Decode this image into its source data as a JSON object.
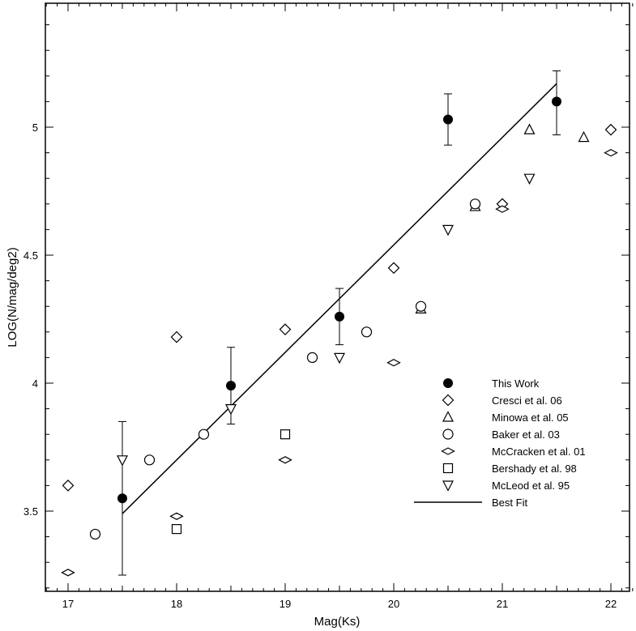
{
  "chart_data": {
    "type": "scatter",
    "xlabel": "Mag(Ks)",
    "ylabel": "LOG(N/mag/deg2)",
    "xlim": [
      16.8,
      22.3
    ],
    "ylim": [
      3.2,
      5.48
    ],
    "x_ticks": [
      "17",
      "18",
      "19",
      "20",
      "21",
      "22"
    ],
    "y_ticks": [
      "3.5",
      "4",
      "4.5",
      "5"
    ],
    "legend_position": "right",
    "series": [
      {
        "name": "This Work",
        "marker": "filled-circle",
        "points": [
          {
            "x": 17.5,
            "y": 3.55,
            "err_lo": 3.25,
            "err_hi": 3.85
          },
          {
            "x": 18.5,
            "y": 3.99,
            "err_lo": 3.84,
            "err_hi": 4.14
          },
          {
            "x": 19.5,
            "y": 4.26,
            "err_lo": 4.15,
            "err_hi": 4.37
          },
          {
            "x": 20.5,
            "y": 5.03,
            "err_lo": 4.93,
            "err_hi": 5.13
          },
          {
            "x": 21.5,
            "y": 5.1,
            "err_lo": 4.97,
            "err_hi": 5.22
          }
        ]
      },
      {
        "name": "Cresci et al. 06",
        "marker": "diamond",
        "points": [
          {
            "x": 17.0,
            "y": 3.6
          },
          {
            "x": 18.0,
            "y": 4.18
          },
          {
            "x": 19.0,
            "y": 4.21
          },
          {
            "x": 20.0,
            "y": 4.45
          },
          {
            "x": 21.0,
            "y": 4.7
          },
          {
            "x": 22.0,
            "y": 4.99
          }
        ]
      },
      {
        "name": "Minowa et al. 05",
        "marker": "triangle-up",
        "points": [
          {
            "x": 20.25,
            "y": 4.29
          },
          {
            "x": 20.75,
            "y": 4.69
          },
          {
            "x": 21.25,
            "y": 4.99
          },
          {
            "x": 21.75,
            "y": 4.96
          }
        ]
      },
      {
        "name": "Baker et al. 03",
        "marker": "open-circle",
        "points": [
          {
            "x": 17.25,
            "y": 3.41
          },
          {
            "x": 17.75,
            "y": 3.7
          },
          {
            "x": 18.25,
            "y": 3.8
          },
          {
            "x": 19.25,
            "y": 4.1
          },
          {
            "x": 19.75,
            "y": 4.2
          },
          {
            "x": 20.25,
            "y": 4.3
          },
          {
            "x": 20.75,
            "y": 4.7
          }
        ]
      },
      {
        "name": "McCracken et al. 01",
        "marker": "flat-diamond",
        "points": [
          {
            "x": 17.0,
            "y": 3.26
          },
          {
            "x": 18.0,
            "y": 3.48
          },
          {
            "x": 19.0,
            "y": 3.7
          },
          {
            "x": 20.0,
            "y": 4.08
          },
          {
            "x": 21.0,
            "y": 4.68
          },
          {
            "x": 22.0,
            "y": 4.9
          }
        ]
      },
      {
        "name": "Bershady et al. 98",
        "marker": "square",
        "points": [
          {
            "x": 18.0,
            "y": 3.43
          },
          {
            "x": 19.0,
            "y": 3.8
          }
        ]
      },
      {
        "name": "McLeod et al. 95",
        "marker": "triangle-down",
        "points": [
          {
            "x": 17.5,
            "y": 3.7
          },
          {
            "x": 18.5,
            "y": 3.9
          },
          {
            "x": 19.5,
            "y": 4.1
          },
          {
            "x": 20.5,
            "y": 4.6
          },
          {
            "x": 21.25,
            "y": 4.8
          }
        ]
      }
    ],
    "fit_line": {
      "name": "Best Fit",
      "x": [
        17.5,
        21.5
      ],
      "y": [
        3.49,
        5.17
      ]
    }
  }
}
